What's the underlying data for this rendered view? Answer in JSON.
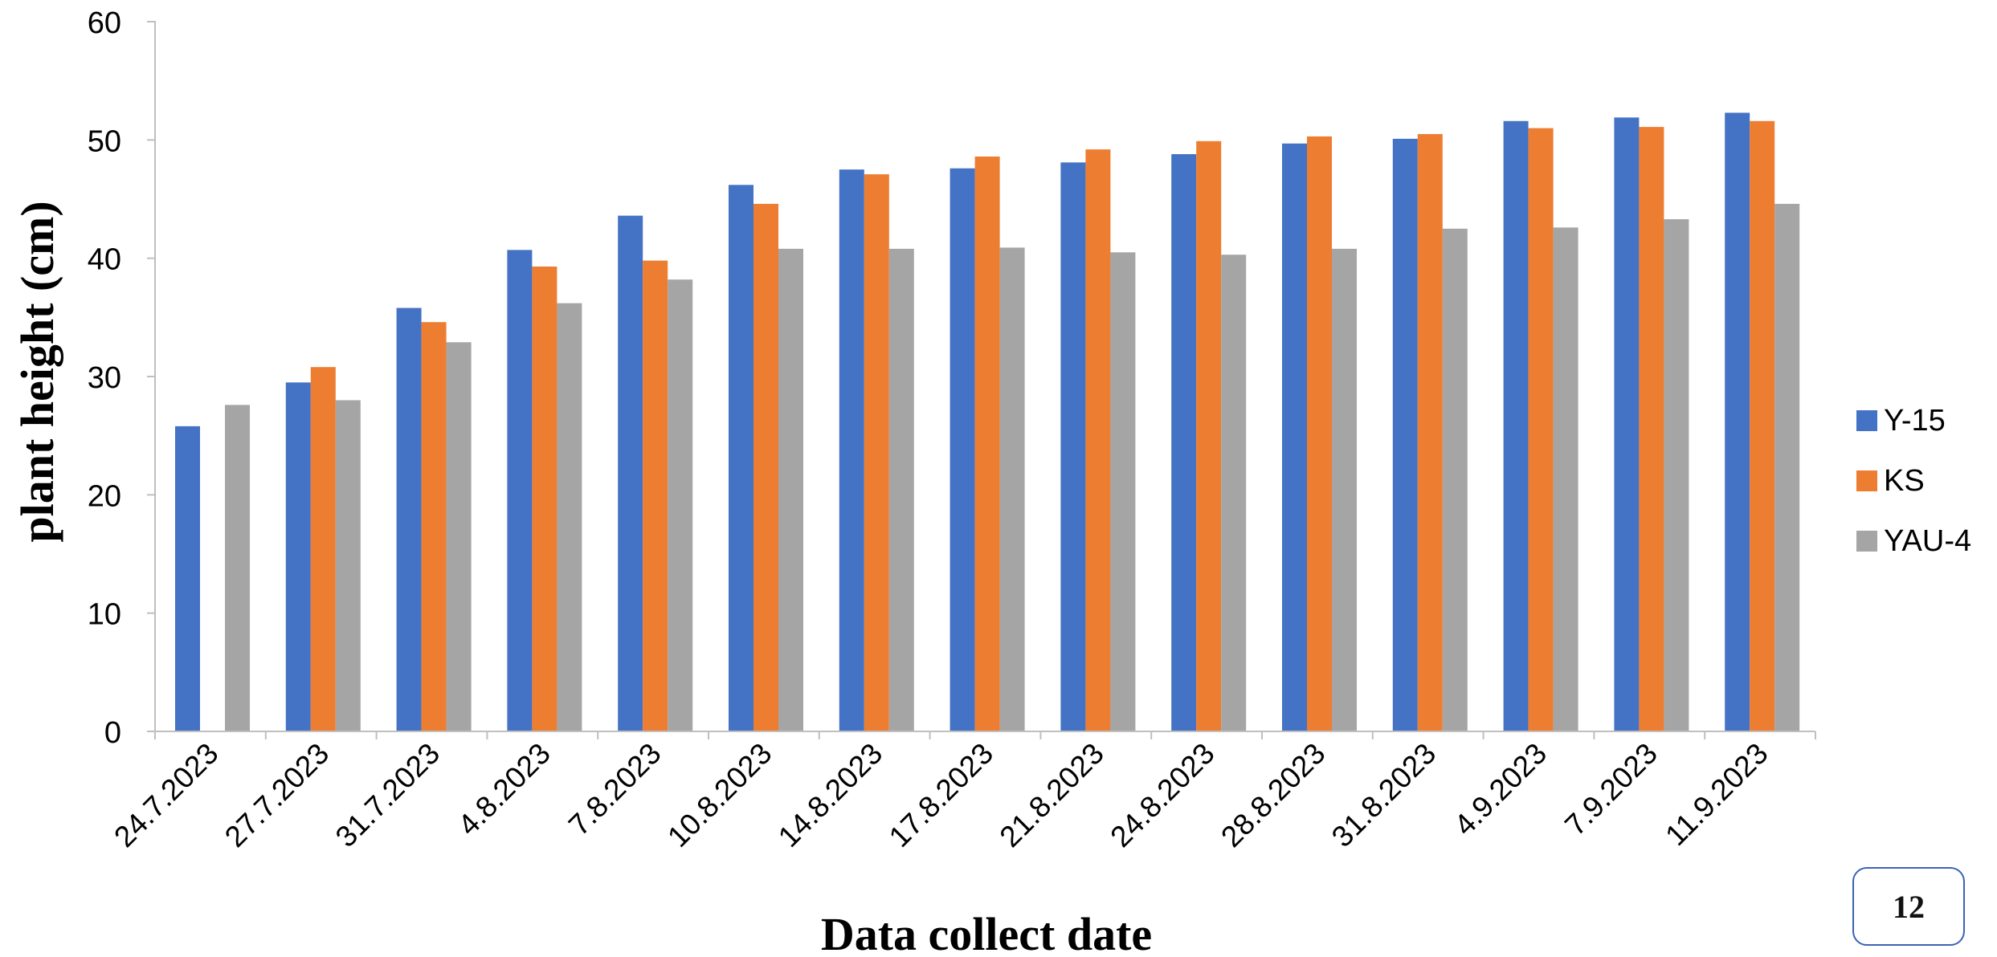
{
  "colors": {
    "Y-15": "#4472c4",
    "KS": "#ed7d31",
    "YAU-4": "#a5a5a5",
    "axis": "#bfbfbf",
    "text": "#000000"
  },
  "page_badge": "12",
  "chart_data": {
    "type": "bar",
    "xlabel": "Data collect date",
    "ylabel": "plant height (cm)",
    "ylim": [
      0,
      60
    ],
    "yticks": [
      0,
      10,
      20,
      30,
      40,
      50,
      60
    ],
    "grid": false,
    "legend_position": "right",
    "categories": [
      "24.7.2023",
      "27.7.2023",
      "31.7.2023",
      "4.8.2023",
      "7.8.2023",
      "10.8.2023",
      "14.8.2023",
      "17.8.2023",
      "21.8.2023",
      "24.8.2023",
      "28.8.2023",
      "31.8.2023",
      "4.9.2023",
      "7.9.2023",
      "11.9.2023"
    ],
    "series": [
      {
        "name": "Y-15",
        "values": [
          25.8,
          29.5,
          35.8,
          40.7,
          43.6,
          46.2,
          47.5,
          47.6,
          48.1,
          48.8,
          49.7,
          50.1,
          51.6,
          51.9,
          52.3
        ]
      },
      {
        "name": "KS",
        "values": [
          0,
          30.8,
          34.6,
          39.3,
          39.8,
          44.6,
          47.1,
          48.6,
          49.2,
          49.9,
          50.3,
          50.5,
          51.0,
          51.1,
          51.6
        ]
      },
      {
        "name": "YAU-4",
        "values": [
          27.6,
          28.0,
          32.9,
          36.2,
          38.2,
          40.8,
          40.8,
          40.9,
          40.5,
          40.3,
          40.8,
          42.5,
          42.6,
          43.3,
          44.6
        ]
      }
    ]
  }
}
